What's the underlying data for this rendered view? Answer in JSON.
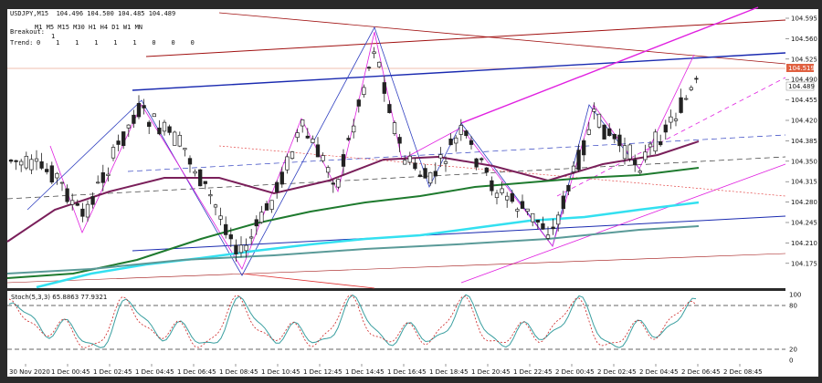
{
  "window": {
    "symbol_line": "USDJPY,M15  104.496 104.500 104.485 104.489",
    "breakout_label": "Breakout:",
    "breakout_value": "1",
    "timeframes": "M1 M5 M15 M30 H1 H4 D1 W1 MN",
    "trend_label": "Trend:",
    "trend_values": "0    1    1    1    1    1    0    0    0"
  },
  "price_axis": {
    "ticks": [
      "104.595",
      "104.560",
      "104.525",
      "104.490",
      "104.455",
      "104.420",
      "104.385",
      "104.350",
      "104.315",
      "104.280",
      "104.245",
      "104.210",
      "104.175"
    ],
    "current_price": "104.519",
    "bid_price": "104.489",
    "current_color": "#e06040",
    "bid_color": "#ffffff"
  },
  "stoch": {
    "label": "Stoch(5,3,3) 65.8863 77.9321",
    "ticks": [
      "100",
      "80",
      "20",
      "0"
    ],
    "main_color": "#3a9fa0",
    "signal_color": "#cc2222"
  },
  "time_axis": {
    "labels": [
      "30 Nov 2020",
      "1 Dec 00:45",
      "1 Dec 02:45",
      "1 Dec 04:45",
      "1 Dec 06:45",
      "1 Dec 08:45",
      "1 Dec 10:45",
      "1 Dec 12:45",
      "1 Dec 14:45",
      "1 Dec 16:45",
      "1 Dec 18:45",
      "1 Dec 20:45",
      "1 Dec 22:45",
      "2 Dec 00:45",
      "2 Dec 02:45",
      "2 Dec 04:45",
      "2 Dec 06:45",
      "2 Dec 08:45"
    ]
  },
  "colors": {
    "chart_bg": "#ffffff",
    "frame": "#2a2a2a",
    "ma_purple": "#7a1f5a",
    "ma_green": "#1e7a2e",
    "ma_cyan": "#33e0f0",
    "ma_teal": "#5a9a98",
    "channel_blue": "#1a2ab0",
    "channel_magenta": "#e020e0",
    "channel_red": "#a01010",
    "candle": "#222222"
  }
}
